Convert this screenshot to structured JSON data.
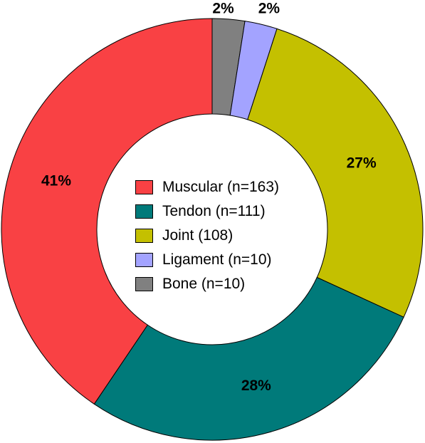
{
  "chart_data": {
    "type": "pie",
    "donut": true,
    "title": "",
    "legend_position": "center",
    "categories": [
      "Muscular (n=163)",
      "Tendon (n=111)",
      "Joint (108)",
      "Ligament (n=10)",
      "Bone (n=10)"
    ],
    "values": [
      163,
      111,
      108,
      10,
      10
    ],
    "percent_labels": [
      "41%",
      "28%",
      "27%",
      "2%",
      "2%"
    ],
    "colors": [
      "#F94144",
      "#007A7A",
      "#C4C000",
      "#A3A3FF",
      "#808080"
    ]
  }
}
